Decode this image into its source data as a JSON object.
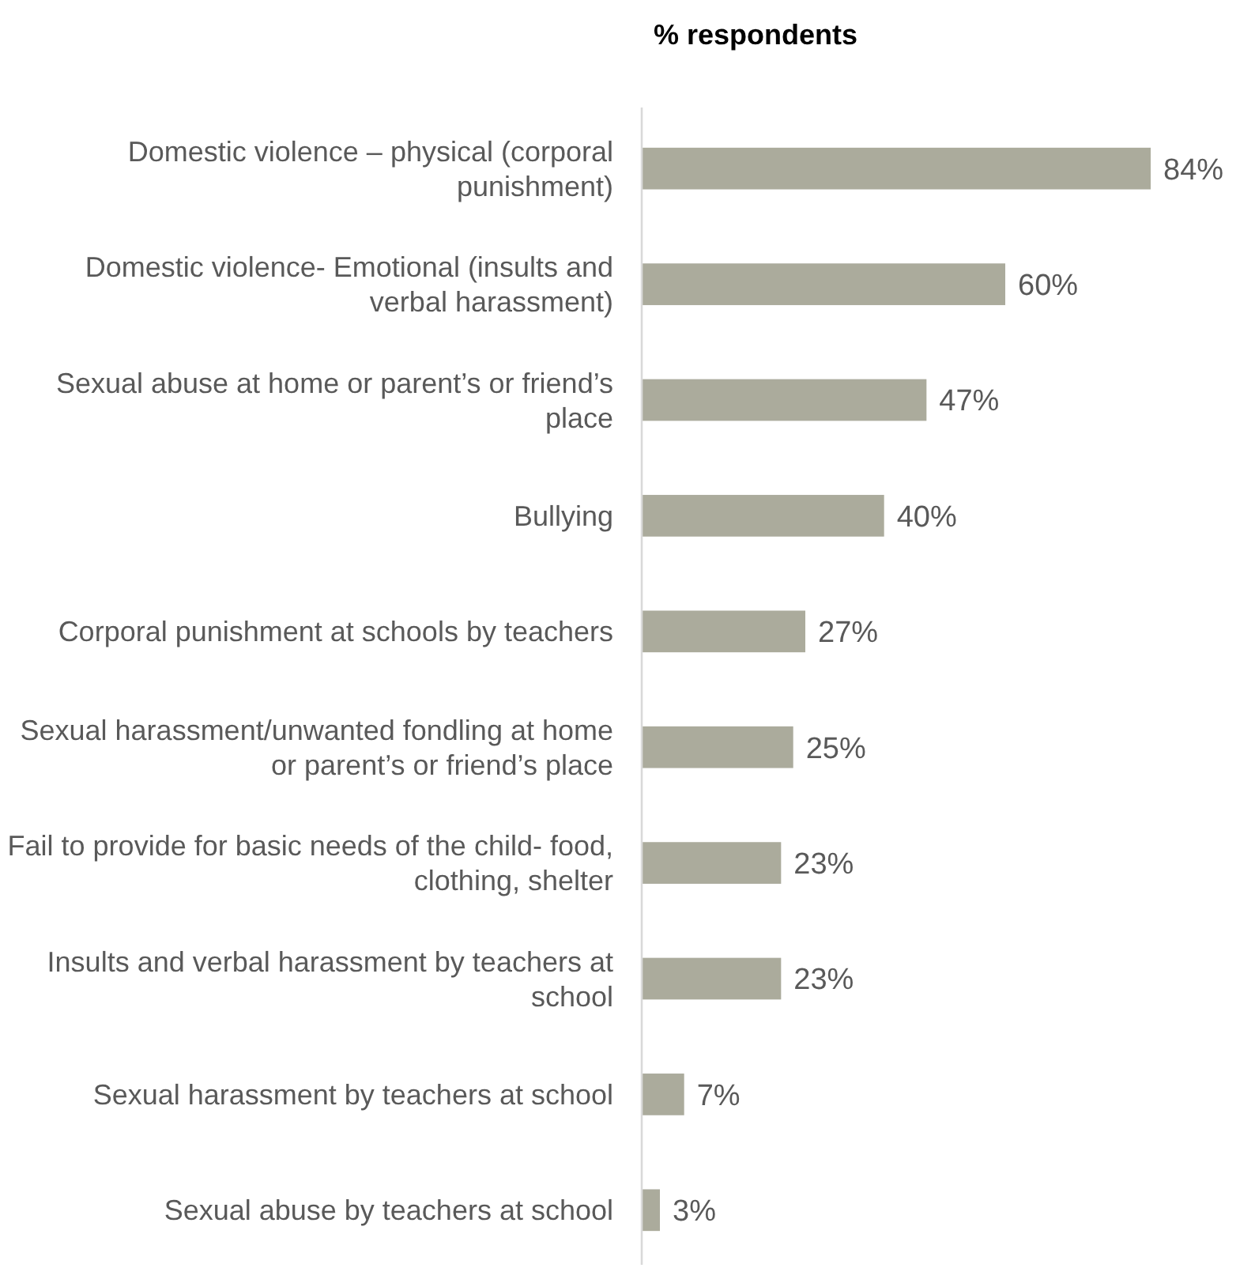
{
  "chart_data": {
    "type": "bar",
    "orientation": "horizontal",
    "title": "% respondents",
    "categories": [
      "Domestic violence – physical (corporal punishment)",
      "Domestic violence- Emotional (insults and verbal harassment)",
      "Sexual abuse at home or parent’s or friend’s place",
      "Bullying",
      "Corporal punishment at schools by teachers",
      "Sexual harassment/unwanted fondling at home or parent’s or friend’s place",
      "Fail to provide for basic needs of the child- food, clothing, shelter",
      "Insults and verbal harassment by teachers at school",
      "Sexual harassment by teachers at school",
      "Sexual abuse by teachers at school"
    ],
    "values": [
      84,
      60,
      47,
      40,
      27,
      25,
      23,
      23,
      7,
      3
    ],
    "value_labels": [
      "84%",
      "60%",
      "47%",
      "40%",
      "27%",
      "25%",
      "23%",
      "23%",
      "7%",
      "3%"
    ],
    "color": "#abab9c"
  }
}
